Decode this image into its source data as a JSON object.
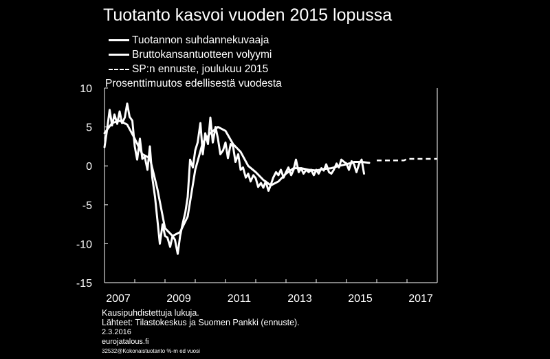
{
  "title": "Tuotanto kasvoi vuoden 2015 lopussa",
  "legend": [
    {
      "label": "Tuotannon suhdannekuvaaja",
      "style": "solid"
    },
    {
      "label": "Bruttokansantuotteen volyymi",
      "style": "solid"
    },
    {
      "label": "SP:n ennuste, joulukuu 2015",
      "style": "dashed"
    }
  ],
  "unit_label": "Prosenttimuutos edellisestä vuodesta",
  "notes": {
    "line1": "Kausipuhdistettuja lukuja.",
    "line2": "Lähteet: Tilastokeskus ja Suomen Pankki (ennuste).",
    "date": "2.3.2016",
    "site": "eurojatalous.fi",
    "code": "32532@Kokonaistuotanto %-m ed vuosi"
  },
  "colors": {
    "background": "#000000",
    "line": "#ffffff"
  },
  "chart_data": {
    "type": "line",
    "title": "Tuotanto kasvoi vuoden 2015 lopussa",
    "xlabel": "",
    "ylabel": "Prosenttimuutos edellisestä vuodesta",
    "xlim": [
      2007,
      2018
    ],
    "ylim": [
      -15,
      10
    ],
    "x_ticks": [
      2007,
      2009,
      2011,
      2013,
      2015,
      2017
    ],
    "y_ticks": [
      10,
      5,
      0,
      -5,
      -10,
      -15
    ],
    "grid": false,
    "legend_position": "top-left",
    "series": [
      {
        "name": "Tuotannon suhdannekuvaaja",
        "style": "solid",
        "points": [
          [
            2007.0,
            2.4
          ],
          [
            2007.08,
            4.5
          ],
          [
            2007.17,
            7.2
          ],
          [
            2007.25,
            5.2
          ],
          [
            2007.33,
            6.6
          ],
          [
            2007.42,
            5.4
          ],
          [
            2007.5,
            7.0
          ],
          [
            2007.58,
            5.5
          ],
          [
            2007.67,
            6.2
          ],
          [
            2007.75,
            8.0
          ],
          [
            2007.83,
            6.3
          ],
          [
            2007.92,
            5.8
          ],
          [
            2008.0,
            2.5
          ],
          [
            2008.08,
            0.8
          ],
          [
            2008.17,
            3.5
          ],
          [
            2008.25,
            0.9
          ],
          [
            2008.33,
            1.2
          ],
          [
            2008.42,
            -0.5
          ],
          [
            2008.5,
            2.5
          ],
          [
            2008.58,
            -1.5
          ],
          [
            2008.67,
            -4.0
          ],
          [
            2008.75,
            -7.0
          ],
          [
            2008.83,
            -10.0
          ],
          [
            2008.92,
            -7.5
          ],
          [
            2009.0,
            -9.0
          ],
          [
            2009.08,
            -9.2
          ],
          [
            2009.17,
            -10.4
          ],
          [
            2009.25,
            -9.0
          ],
          [
            2009.33,
            -9.5
          ],
          [
            2009.42,
            -11.3
          ],
          [
            2009.5,
            -9.0
          ],
          [
            2009.58,
            -7.5
          ],
          [
            2009.67,
            -6.0
          ],
          [
            2009.75,
            -4.0
          ],
          [
            2009.83,
            0.8
          ],
          [
            2009.92,
            -0.2
          ],
          [
            2010.0,
            2.0
          ],
          [
            2010.08,
            3.0
          ],
          [
            2010.17,
            5.5
          ],
          [
            2010.25,
            1.5
          ],
          [
            2010.33,
            4.2
          ],
          [
            2010.42,
            2.8
          ],
          [
            2010.5,
            6.2
          ],
          [
            2010.58,
            3.0
          ],
          [
            2010.67,
            5.0
          ],
          [
            2010.75,
            3.5
          ],
          [
            2010.83,
            1.5
          ],
          [
            2010.92,
            2.0
          ],
          [
            2011.0,
            3.0
          ],
          [
            2011.08,
            1.0
          ],
          [
            2011.17,
            2.8
          ],
          [
            2011.25,
            2.5
          ],
          [
            2011.33,
            0.5
          ],
          [
            2011.42,
            1.5
          ],
          [
            2011.5,
            -0.5
          ],
          [
            2011.58,
            -0.2
          ],
          [
            2011.67,
            -1.5
          ],
          [
            2011.75,
            -1.0
          ],
          [
            2011.83,
            -2.0
          ],
          [
            2011.92,
            -1.2
          ],
          [
            2012.0,
            -1.6
          ],
          [
            2012.08,
            -2.7
          ],
          [
            2012.17,
            -2.2
          ],
          [
            2012.25,
            -2.8
          ],
          [
            2012.33,
            -2.0
          ],
          [
            2012.42,
            -3.2
          ],
          [
            2012.5,
            -2.4
          ],
          [
            2012.58,
            -1.5
          ],
          [
            2012.67,
            -0.8
          ],
          [
            2012.75,
            -1.2
          ],
          [
            2012.83,
            -0.5
          ],
          [
            2012.92,
            -1.5
          ],
          [
            2013.0,
            -0.8
          ],
          [
            2013.08,
            -0.2
          ],
          [
            2013.17,
            -1.2
          ],
          [
            2013.25,
            -0.5
          ],
          [
            2013.33,
            0.8
          ],
          [
            2013.42,
            -0.8
          ],
          [
            2013.5,
            -0.3
          ],
          [
            2013.58,
            -1.0
          ],
          [
            2013.67,
            -0.5
          ],
          [
            2013.75,
            -0.8
          ],
          [
            2013.83,
            -0.5
          ],
          [
            2013.92,
            -1.2
          ],
          [
            2014.0,
            -0.5
          ],
          [
            2014.08,
            -1.0
          ],
          [
            2014.17,
            -0.3
          ],
          [
            2014.25,
            -0.6
          ],
          [
            2014.33,
            0.2
          ],
          [
            2014.42,
            -0.8
          ],
          [
            2014.5,
            -1.0
          ],
          [
            2014.58,
            -0.5
          ],
          [
            2014.67,
            0.3
          ],
          [
            2014.75,
            -0.2
          ],
          [
            2014.83,
            0.8
          ],
          [
            2014.92,
            0.5
          ],
          [
            2015.0,
            0.3
          ],
          [
            2015.08,
            -0.5
          ],
          [
            2015.17,
            0.6
          ],
          [
            2015.25,
            0.2
          ],
          [
            2015.33,
            -0.8
          ],
          [
            2015.42,
            0.3
          ],
          [
            2015.5,
            0.8
          ],
          [
            2015.58,
            -1.0
          ]
        ]
      },
      {
        "name": "Bruttokansantuotteen volyymi",
        "style": "solid",
        "points": [
          [
            2007.0,
            4.2
          ],
          [
            2007.25,
            5.5
          ],
          [
            2007.5,
            5.8
          ],
          [
            2007.75,
            5.3
          ],
          [
            2008.0,
            3.5
          ],
          [
            2008.25,
            1.5
          ],
          [
            2008.5,
            1.0
          ],
          [
            2008.75,
            -3.0
          ],
          [
            2009.0,
            -8.0
          ],
          [
            2009.25,
            -9.0
          ],
          [
            2009.5,
            -8.5
          ],
          [
            2009.75,
            -6.5
          ],
          [
            2010.0,
            -0.5
          ],
          [
            2010.25,
            3.0
          ],
          [
            2010.5,
            4.2
          ],
          [
            2010.75,
            5.0
          ],
          [
            2011.0,
            4.5
          ],
          [
            2011.25,
            2.8
          ],
          [
            2011.5,
            1.8
          ],
          [
            2011.75,
            0.0
          ],
          [
            2012.0,
            -0.8
          ],
          [
            2012.25,
            -1.8
          ],
          [
            2012.5,
            -2.5
          ],
          [
            2012.75,
            -2.0
          ],
          [
            2013.0,
            -1.0
          ],
          [
            2013.25,
            -0.3
          ],
          [
            2013.5,
            -0.3
          ],
          [
            2013.75,
            -0.5
          ],
          [
            2014.0,
            -0.6
          ],
          [
            2014.25,
            -0.4
          ],
          [
            2014.5,
            -0.3
          ],
          [
            2014.75,
            0.0
          ],
          [
            2015.0,
            0.2
          ],
          [
            2015.25,
            0.5
          ],
          [
            2015.5,
            0.5
          ],
          [
            2015.75,
            0.4
          ]
        ]
      },
      {
        "name": "SP:n ennuste, joulukuu 2015",
        "style": "dashed",
        "points": [
          [
            2016.0,
            0.7
          ],
          [
            2016.9,
            0.7
          ],
          [
            2017.0,
            0.9
          ],
          [
            2018.0,
            0.9
          ]
        ]
      }
    ]
  }
}
